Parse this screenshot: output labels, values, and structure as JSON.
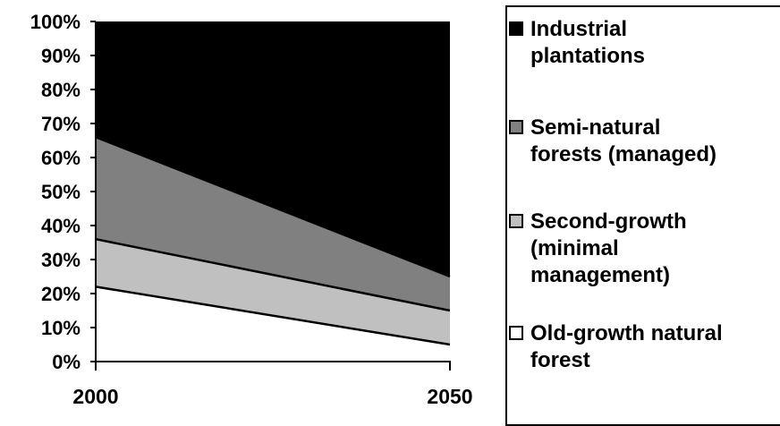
{
  "chart_data": {
    "type": "area",
    "stacked": true,
    "percent": true,
    "categories": [
      "2000",
      "2050"
    ],
    "ylim": [
      0,
      100
    ],
    "yticks": [
      "0%",
      "10%",
      "20%",
      "30%",
      "40%",
      "50%",
      "60%",
      "70%",
      "80%",
      "90%",
      "100%"
    ],
    "series": [
      {
        "name": "Old-growth natural forest",
        "values": [
          22,
          5
        ],
        "color": "#ffffff"
      },
      {
        "name": "Second-growth (minimal management)",
        "values": [
          14,
          10
        ],
        "color": "#c0c0c0"
      },
      {
        "name": "Semi-natural forests (managed)",
        "values": [
          30,
          10
        ],
        "color": "#808080"
      },
      {
        "name": "Industrial plantations",
        "values": [
          34,
          75
        ],
        "color": "#000000"
      }
    ],
    "legend_position": "right",
    "grid": false
  },
  "legend": [
    {
      "label": "Industrial\nplantations",
      "color": "#000000"
    },
    {
      "label": "Semi-natural\nforests (managed)",
      "color": "#808080"
    },
    {
      "label": "Second-growth\n(minimal\nmanagement)",
      "color": "#c0c0c0"
    },
    {
      "label": "Old-growth natural\nforest",
      "color": "#ffffff"
    }
  ]
}
